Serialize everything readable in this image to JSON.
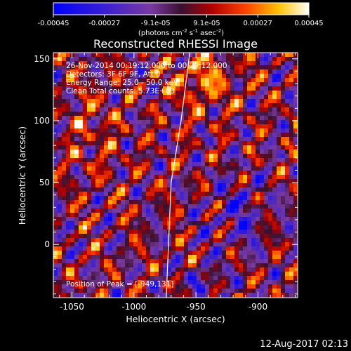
{
  "chart_data": {
    "type": "heatmap",
    "title": "Reconstructed RHESSI Image",
    "xlabel": "Heliocentric X (arcsec)",
    "ylabel": "Heliocentric Y (arcsec)",
    "xlim": [
      -1065,
      -868
    ],
    "ylim": [
      -43,
      155
    ],
    "xticks": [
      -1050,
      -1000,
      -950,
      -900
    ],
    "yticks": [
      0,
      50,
      100,
      150
    ],
    "colorbar": {
      "ticks": [
        "-0.00045",
        "-0.00027",
        "-9.1e-05",
        "9.1e-05",
        "0.00027",
        "0.00045"
      ],
      "label_parts": [
        "(photons cm",
        "-2",
        " s",
        "-1",
        " asec",
        "-2",
        ")"
      ],
      "range": [
        -0.00045,
        0.00045
      ],
      "colormap": "rhessi-blue-purple-red-yellow-white"
    },
    "info_lines": [
      "26-Nov-2014 00:19:12.000 to 00:29:12.000",
      "Detectors: 3F 6F 9F, Att 0",
      "Energy Range: 25.0 - 50.0 keV",
      "Clean    Total counts: 5.73E+03"
    ],
    "peak_text": "Position of Peak = [-949,131]",
    "peak_position": [
      -949,
      131
    ],
    "limb_line": [
      [
        -974,
        -43
      ],
      [
        -970,
        50
      ],
      [
        -962,
        100
      ],
      [
        -955,
        155
      ]
    ]
  },
  "footer": {
    "timestamp": "12-Aug-2017 02:13"
  }
}
